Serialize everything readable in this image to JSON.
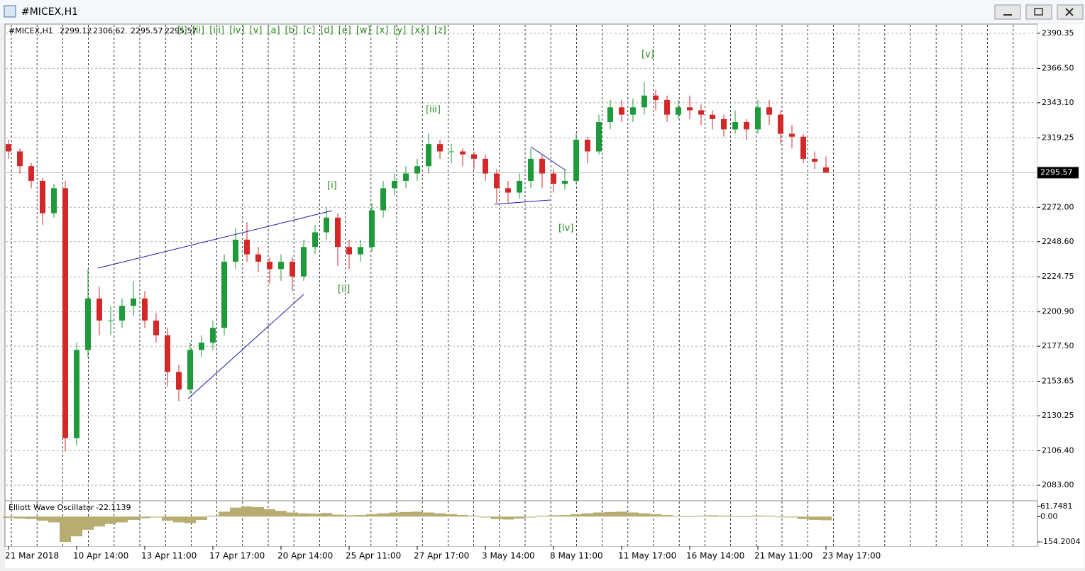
{
  "window": {
    "title": "#MICEX,H1"
  },
  "toolbar": {
    "wave_buttons": [
      "[i]",
      "[ii]",
      "[iii]",
      "[iv]",
      "[v]",
      "[a]",
      "[b]",
      "[c]",
      "[d]",
      "[e]",
      "[w]",
      "[x]",
      "[y]",
      "[xx]",
      "[z]"
    ]
  },
  "chart_data": [
    {
      "type": "candlestick",
      "symbol": "#MICEX,H1",
      "categories": [
        "21 Mar 2018",
        null,
        null,
        null,
        null,
        null,
        "10 Apr 14:00",
        null,
        null,
        null,
        null,
        null,
        "13 Apr 11:00",
        null,
        null,
        null,
        null,
        null,
        "17 Apr 17:00",
        null,
        null,
        null,
        null,
        null,
        "20 Apr 14:00",
        null,
        null,
        null,
        null,
        null,
        "25 Apr 11:00",
        null,
        null,
        null,
        null,
        null,
        "27 Apr 17:00",
        null,
        null,
        null,
        null,
        null,
        "3 May 14:00",
        null,
        null,
        null,
        null,
        null,
        "8 May 11:00",
        null,
        null,
        null,
        null,
        null,
        "11 May 17:00",
        null,
        null,
        null,
        null,
        null,
        "16 May 14:00",
        null,
        null,
        null,
        null,
        null,
        "21 May 11:00",
        null,
        null,
        null,
        null,
        null,
        "23 May 17:00"
      ],
      "open": [
        2315,
        2310,
        2300,
        2290,
        2268,
        2285,
        2115,
        2175,
        2210,
        2195,
        2195,
        2205,
        2210,
        2195,
        2185,
        2160,
        2148,
        2175,
        2180,
        2190,
        2235,
        2250,
        2240,
        2235,
        2230,
        2235,
        2225,
        2245,
        2255,
        2265,
        2245,
        2240,
        2245,
        2270,
        2285,
        2290,
        2295,
        2300,
        2315,
        2310,
        2310,
        2308,
        2305,
        2295,
        2285,
        2282,
        2290,
        2305,
        2295,
        2288,
        2290,
        2318,
        2310,
        2330,
        2340,
        2335,
        2340,
        2348,
        2345,
        2335,
        2340,
        2338,
        2335,
        2332,
        2325,
        2330,
        2325,
        2340,
        2335,
        2322,
        2320,
        2305,
        2299.12
      ],
      "high": [
        2318,
        2312,
        2302,
        2292,
        2288,
        2290,
        2180,
        2230,
        2218,
        2205,
        2210,
        2222,
        2215,
        2200,
        2190,
        2165,
        2180,
        2185,
        2195,
        2240,
        2258,
        2262,
        2245,
        2238,
        2240,
        2238,
        2250,
        2260,
        2272,
        2268,
        2250,
        2250,
        2275,
        2290,
        2295,
        2300,
        2305,
        2322,
        2318,
        2315,
        2312,
        2310,
        2308,
        2298,
        2290,
        2295,
        2312,
        2308,
        2298,
        2298,
        2322,
        2320,
        2335,
        2345,
        2345,
        2346,
        2357,
        2352,
        2348,
        2345,
        2348,
        2342,
        2338,
        2335,
        2338,
        2332,
        2345,
        2345,
        2338,
        2328,
        2322,
        2310,
        2306.62
      ],
      "low": [
        2305,
        2295,
        2285,
        2260,
        2265,
        2106,
        2110,
        2170,
        2185,
        2185,
        2190,
        2198,
        2190,
        2180,
        2150,
        2140,
        2145,
        2170,
        2175,
        2185,
        2230,
        2235,
        2228,
        2220,
        2222,
        2215,
        2222,
        2240,
        2250,
        2232,
        2230,
        2235,
        2242,
        2265,
        2280,
        2285,
        2290,
        2295,
        2305,
        2302,
        2300,
        2298,
        2290,
        2275,
        2275,
        2278,
        2285,
        2285,
        2282,
        2284,
        2288,
        2302,
        2308,
        2325,
        2330,
        2330,
        2335,
        2338,
        2330,
        2332,
        2332,
        2328,
        2325,
        2320,
        2322,
        2318,
        2322,
        2328,
        2315,
        2312,
        2302,
        2298,
        2295.57
      ],
      "close": [
        2310,
        2300,
        2290,
        2268,
        2285,
        2115,
        2175,
        2210,
        2195,
        2195,
        2205,
        2210,
        2195,
        2185,
        2160,
        2148,
        2175,
        2180,
        2190,
        2235,
        2250,
        2240,
        2235,
        2230,
        2235,
        2225,
        2245,
        2255,
        2265,
        2245,
        2240,
        2245,
        2270,
        2285,
        2290,
        2295,
        2300,
        2315,
        2310,
        2310,
        2308,
        2305,
        2295,
        2285,
        2282,
        2290,
        2305,
        2295,
        2288,
        2290,
        2318,
        2310,
        2330,
        2340,
        2335,
        2340,
        2348,
        2345,
        2335,
        2340,
        2338,
        2335,
        2332,
        2325,
        2330,
        2325,
        2340,
        2335,
        2322,
        2320,
        2305,
        2303,
        2295.57
      ],
      "up_color": "#1f9a3a",
      "down_color": "#d42828",
      "ylim": [
        2072.9,
        2396.1
      ],
      "yticks": [
        2390.35,
        {
          "value": 2366.5,
          "label": "2366.50"
        },
        {
          "value": 2343.1,
          "label": "2343.10"
        },
        2319.25,
        {
          "value": 2272,
          "label": "2272.00"
        },
        {
          "value": 2248.6,
          "label": "2248.60"
        },
        2224.75,
        {
          "value": 2200.9,
          "label": "2200.90"
        },
        {
          "value": 2177.5,
          "label": "2177.50"
        },
        2153.65,
        2130.25,
        {
          "value": 2106.4,
          "label": "2106.40"
        },
        {
          "value": 2083,
          "label": "2083.00"
        }
      ],
      "grid": true,
      "annotations": [
        "[i]",
        "[ii]",
        "[iii]",
        "[iv]",
        "[v]"
      ]
    },
    {
      "type": "bar",
      "title": "Elliott Wave Oscillator",
      "values": [
        -8,
        -12,
        -15,
        -25,
        -35,
        -154,
        -120,
        -80,
        -60,
        -45,
        -35,
        -20,
        -10,
        -5,
        -25,
        -35,
        -40,
        -20,
        5,
        30,
        55,
        61.7481,
        58,
        45,
        35,
        25,
        20,
        18,
        22,
        12,
        8,
        10,
        15,
        20,
        25,
        28,
        30,
        25,
        20,
        15,
        10,
        5,
        -5,
        -15,
        -18,
        -12,
        -5,
        5,
        8,
        10,
        15,
        20,
        25,
        28,
        30,
        25,
        20,
        15,
        10,
        5,
        3,
        5,
        8,
        6,
        4,
        2,
        6,
        5,
        0,
        -5,
        -15,
        -20,
        -22.1139
      ],
      "color": "#b8ad70",
      "ylim": [
        -180,
        92
      ],
      "yticks": [
        61.7481,
        {
          "value": 0,
          "label": "0.00"
        },
        -154.2004
      ]
    }
  ]
}
